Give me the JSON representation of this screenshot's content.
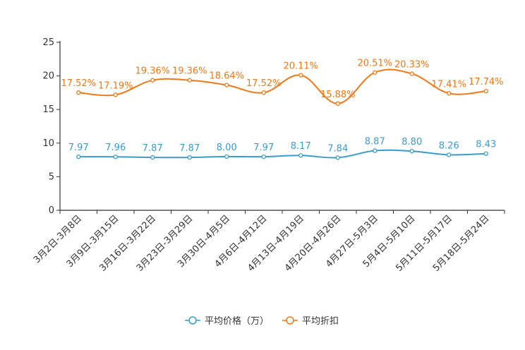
{
  "chart_data": {
    "type": "line",
    "categories": [
      "3月2日-3月8日",
      "3月9日-3月15日",
      "3月16日-3月22日",
      "3月23日-3月29日",
      "3月30日-4月5日",
      "4月6日-4月12日",
      "4月13日-4月19日",
      "4月20日-4月26日",
      "4月27日-5月3日",
      "5月4日-5月10日",
      "5月11日-5月17日",
      "5月18日-5月24日"
    ],
    "ylim": [
      0,
      25
    ],
    "yticks": [
      0,
      5,
      10,
      15,
      20,
      25
    ],
    "series": [
      {
        "name": "平均价格（万）",
        "color": "#3b9ccc",
        "values": [
          7.97,
          7.96,
          7.87,
          7.87,
          8.0,
          7.97,
          8.17,
          7.84,
          8.87,
          8.8,
          8.26,
          8.43
        ],
        "labels": [
          "7.97",
          "7.96",
          "7.87",
          "7.87",
          "8.00",
          "7.97",
          "8.17",
          "7.84",
          "8.87",
          "8.80",
          "8.26",
          "8.43"
        ]
      },
      {
        "name": "平均折扣",
        "color": "#f07818",
        "values": [
          17.52,
          17.19,
          19.36,
          19.36,
          18.64,
          17.52,
          20.11,
          15.88,
          20.51,
          20.33,
          17.41,
          17.74
        ],
        "labels": [
          "17.52%",
          "17.19%",
          "19.36%",
          "19.36%",
          "18.64%",
          "17.52%",
          "20.11%",
          "15.88%",
          "20.51%",
          "20.33%",
          "17.41%",
          "17.74%"
        ]
      }
    ],
    "legend_position": "bottom-center"
  }
}
